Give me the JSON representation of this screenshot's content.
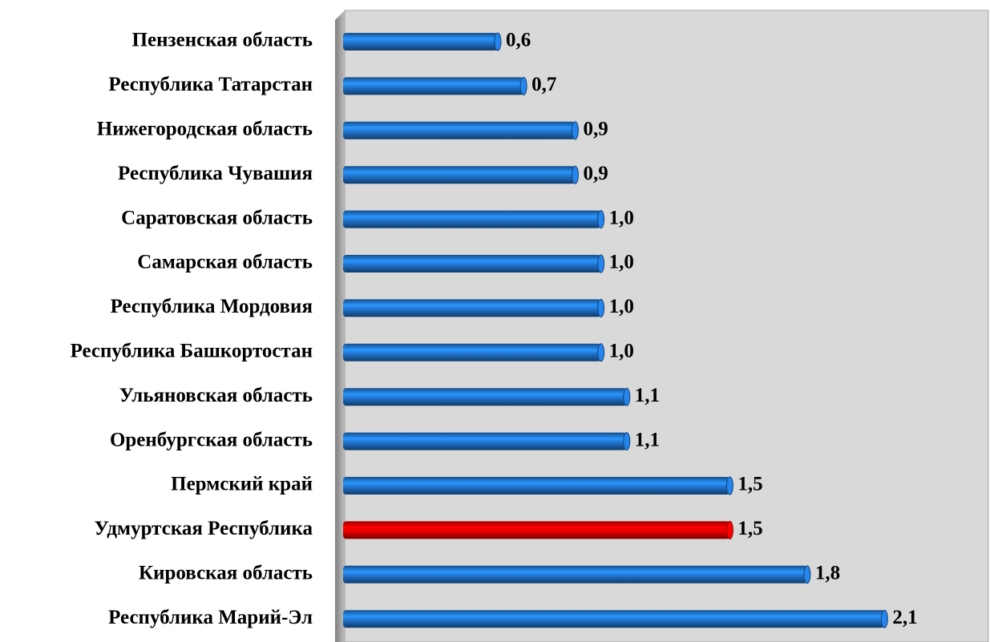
{
  "chart_data": {
    "type": "barh",
    "categories": [
      "Пензенская область",
      "Республика Татарстан",
      "Нижегородская область",
      "Республика Чувашия",
      "Саратовская область",
      "Самарская область",
      "Республика Мордовия",
      "Республика Башкортостан",
      "Ульяновская область",
      "Оренбургская область",
      "Пермский край",
      "Удмуртская Республика",
      "Кировская область",
      "Республика Марий-Эл"
    ],
    "values": [
      0.6,
      0.7,
      0.9,
      0.9,
      1.0,
      1.0,
      1.0,
      1.0,
      1.1,
      1.1,
      1.5,
      1.5,
      1.8,
      2.1
    ],
    "value_labels": [
      "0,6",
      "0,7",
      "0,9",
      "0,9",
      "1,0",
      "1,0",
      "1,0",
      "1,0",
      "1,1",
      "1,1",
      "1,5",
      "1,5",
      "1,8",
      "2,1"
    ],
    "colors": [
      "#1f6fc5",
      "#1f6fc5",
      "#1f6fc5",
      "#1f6fc5",
      "#1f6fc5",
      "#1f6fc5",
      "#1f6fc5",
      "#1f6fc5",
      "#1f6fc5",
      "#1f6fc5",
      "#1f6fc5",
      "#e00000",
      "#1f6fc5",
      "#1f6fc5"
    ],
    "xlim": [
      0,
      2.5
    ]
  }
}
